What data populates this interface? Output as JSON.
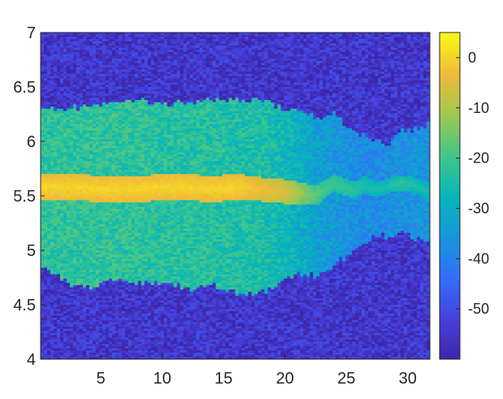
{
  "chart_data": {
    "type": "heatmap",
    "title": "",
    "xlabel": "",
    "ylabel": "",
    "xlim": [
      0.1,
      31.8
    ],
    "ylim": [
      4,
      7
    ],
    "x_ticks": [
      5,
      10,
      15,
      20,
      25,
      30
    ],
    "y_ticks": [
      4,
      4.5,
      5,
      5.5,
      6,
      6.5,
      7
    ],
    "y_tick_labels": [
      "4",
      "4.5",
      "5",
      "5.5",
      "6",
      "6.5",
      "7"
    ],
    "colormap": "parula",
    "colorbar": {
      "range": [
        -60,
        5
      ],
      "ticks": [
        0,
        -10,
        -20,
        -30,
        -40,
        -50
      ],
      "tick_labels": [
        "0",
        "-10",
        "-20",
        "-30",
        "-40",
        "-50"
      ],
      "placement": "right"
    },
    "band_profile": {
      "description_free": true,
      "x": [
        0.5,
        2,
        4,
        6,
        8,
        10,
        12,
        14,
        16,
        18,
        20,
        21.5,
        22.5,
        24,
        25.5,
        26.5,
        27.5,
        28.5,
        29.5,
        30.5,
        31.5
      ],
      "core_center": [
        5.58,
        5.58,
        5.57,
        5.55,
        5.56,
        5.58,
        5.58,
        5.56,
        5.58,
        5.56,
        5.54,
        5.52,
        5.5,
        5.62,
        5.55,
        5.6,
        5.55,
        5.6,
        5.62,
        5.6,
        5.55
      ],
      "core_half_width": [
        0.12,
        0.12,
        0.12,
        0.12,
        0.12,
        0.12,
        0.12,
        0.12,
        0.12,
        0.11,
        0.11,
        0.1,
        0.09,
        0.08,
        0.08,
        0.08,
        0.07,
        0.07,
        0.07,
        0.07,
        0.07
      ],
      "core_level": [
        0,
        0,
        0,
        0,
        0,
        0,
        0,
        0,
        0,
        -3,
        -5,
        -12,
        -17,
        -20,
        -22,
        -24,
        -25,
        -24,
        -22,
        -24,
        -25
      ],
      "halo_upper": [
        6.3,
        6.3,
        6.32,
        6.35,
        6.38,
        6.35,
        6.36,
        6.38,
        6.38,
        6.4,
        6.28,
        6.3,
        6.2,
        6.25,
        6.1,
        6.05,
        6.0,
        5.95,
        6.1,
        6.1,
        6.15
      ],
      "halo_lower": [
        4.85,
        4.72,
        4.65,
        4.72,
        4.7,
        4.7,
        4.65,
        4.68,
        4.6,
        4.6,
        4.72,
        4.8,
        4.75,
        4.85,
        5.0,
        5.05,
        5.15,
        5.1,
        5.2,
        5.1,
        5.1
      ],
      "halo_level": [
        -22,
        -22,
        -22,
        -22,
        -22,
        -23,
        -23,
        -23,
        -24,
        -24,
        -27,
        -30,
        -33,
        -35,
        -37,
        -38,
        -38,
        -37,
        -36,
        -36,
        -36
      ],
      "background_level": -55
    }
  }
}
